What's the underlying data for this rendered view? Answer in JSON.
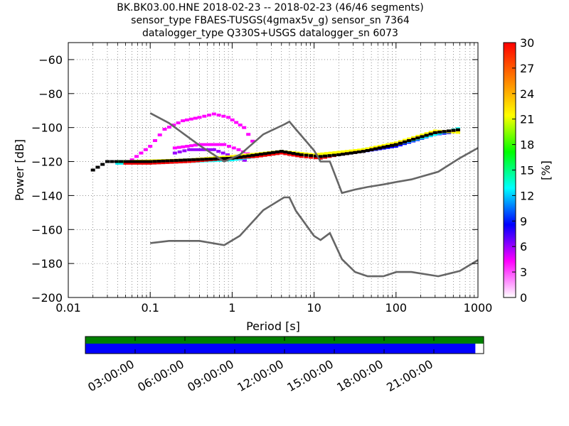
{
  "title_lines": [
    "BK.BK03.00.HNE   2018-02-23 -- 2018-02-23  (46/46 segments)",
    "sensor_type FBAES-TUSGS(4gmax5v_g) sensor_sn 7364",
    "datalogger_type Q330S+USGS datalogger_sn 6073"
  ],
  "chart_data": {
    "type": "heatmap",
    "xlabel": "Period [s]",
    "ylabel": "Power [dB]",
    "xscale": "log",
    "xlim": [
      0.01,
      1000
    ],
    "ylim": [
      -200,
      -50
    ],
    "grid": true,
    "x_ticks": [
      {
        "value": 0.01,
        "label": "0.01"
      },
      {
        "value": 0.1,
        "label": "0.1"
      },
      {
        "value": 1,
        "label": "1"
      },
      {
        "value": 10,
        "label": "10"
      },
      {
        "value": 100,
        "label": "100"
      },
      {
        "value": 1000,
        "label": "1000"
      }
    ],
    "y_ticks": [
      {
        "value": -60,
        "label": "−60"
      },
      {
        "value": -80,
        "label": "−80"
      },
      {
        "value": -100,
        "label": "−100"
      },
      {
        "value": -120,
        "label": "−120"
      },
      {
        "value": -140,
        "label": "−140"
      },
      {
        "value": -160,
        "label": "−160"
      },
      {
        "value": -180,
        "label": "−180"
      },
      {
        "value": -200,
        "label": "−200"
      }
    ],
    "colorbar": {
      "label": "[%]",
      "range": [
        0,
        30
      ],
      "ticks": [
        "0",
        "3",
        "6",
        "9",
        "12",
        "15",
        "18",
        "21",
        "24",
        "27",
        "30"
      ],
      "colormap": [
        "#ffffff",
        "#ff00ff",
        "#0000ff",
        "#00ffff",
        "#00ff00",
        "#ffff00",
        "#ff7f00",
        "#ff0000"
      ]
    },
    "noise_models": [
      {
        "points": [
          [
            0.1,
            -91.5
          ],
          [
            0.17,
            -97.4
          ],
          [
            0.4,
            -110.5
          ],
          [
            0.8,
            -120
          ],
          [
            1.24,
            -116
          ],
          [
            2.4,
            -104
          ],
          [
            4.3,
            -98.2
          ],
          [
            5,
            -96.5
          ],
          [
            6,
            -101
          ],
          [
            10,
            -113.5
          ],
          [
            12,
            -120
          ],
          [
            15.6,
            -120
          ],
          [
            21.9,
            -138.5
          ],
          [
            31.6,
            -136.5
          ],
          [
            45,
            -135
          ],
          [
            70,
            -133.5
          ],
          [
            101,
            -132
          ],
          [
            154,
            -130.5
          ],
          [
            328,
            -126
          ],
          [
            600,
            -118
          ],
          [
            1000,
            -112
          ]
        ]
      },
      {
        "points": [
          [
            0.1,
            -168
          ],
          [
            0.17,
            -166.7
          ],
          [
            0.4,
            -166.7
          ],
          [
            0.8,
            -169.2
          ],
          [
            1.24,
            -163.7
          ],
          [
            2.4,
            -148.6
          ],
          [
            4.3,
            -141.1
          ],
          [
            5,
            -141.1
          ],
          [
            6,
            -149
          ],
          [
            10,
            -163.8
          ],
          [
            12,
            -166.2
          ],
          [
            15.6,
            -162.1
          ],
          [
            21.9,
            -177.5
          ],
          [
            31.6,
            -185
          ],
          [
            45,
            -187.5
          ],
          [
            70,
            -187.5
          ],
          [
            101,
            -185
          ],
          [
            154,
            -185
          ],
          [
            328,
            -187.5
          ],
          [
            600,
            -184.4
          ],
          [
            1000,
            -178
          ]
        ]
      }
    ],
    "psd_bands": [
      {
        "percent": 1,
        "color": "#ff00ff",
        "points": [
          [
            0.06,
            -119
          ],
          [
            0.1,
            -111
          ],
          [
            0.15,
            -101
          ],
          [
            0.25,
            -96
          ],
          [
            0.4,
            -94
          ],
          [
            0.6,
            -92
          ],
          [
            0.9,
            -94
          ],
          [
            1.4,
            -100
          ],
          [
            2,
            -112
          ]
        ]
      },
      {
        "percent": 2,
        "color": "#ff00ff",
        "points": [
          [
            0.2,
            -112
          ],
          [
            0.4,
            -110
          ],
          [
            0.8,
            -110
          ],
          [
            1.2,
            -113
          ],
          [
            2,
            -118
          ]
        ]
      },
      {
        "percent": 3,
        "color": "#9900ff",
        "points": [
          [
            0.2,
            -115
          ],
          [
            0.3,
            -113
          ],
          [
            0.6,
            -113
          ],
          [
            1,
            -117
          ],
          [
            1.6,
            -120
          ]
        ]
      },
      {
        "percent": 8,
        "color": "#0000ff",
        "points": [
          [
            0.04,
            -121
          ],
          [
            0.1,
            -120
          ],
          [
            0.3,
            -119
          ],
          [
            1,
            -118
          ],
          [
            2,
            -116
          ],
          [
            4,
            -114
          ],
          [
            7,
            -116
          ],
          [
            12,
            -117
          ],
          [
            20,
            -116
          ],
          [
            40,
            -114
          ],
          [
            100,
            -111
          ],
          [
            300,
            -104
          ],
          [
            650,
            -102
          ]
        ]
      },
      {
        "percent": 14,
        "color": "#00ffff",
        "points": [
          [
            0.04,
            -121
          ],
          [
            0.1,
            -121
          ],
          [
            0.3,
            -120
          ],
          [
            1,
            -119
          ],
          [
            2,
            -117
          ],
          [
            4,
            -115
          ],
          [
            7,
            -117
          ],
          [
            12,
            -118
          ],
          [
            20,
            -116
          ],
          [
            40,
            -114
          ],
          [
            100,
            -110
          ],
          [
            300,
            -104
          ],
          [
            650,
            -100
          ]
        ]
      },
      {
        "percent": 18,
        "color": "#00ff00",
        "points": [
          [
            0.04,
            -120
          ],
          [
            0.1,
            -120
          ],
          [
            0.3,
            -119
          ],
          [
            1,
            -118
          ],
          [
            2,
            -116
          ],
          [
            4,
            -114
          ],
          [
            7,
            -116
          ],
          [
            12,
            -117
          ],
          [
            20,
            -116
          ],
          [
            40,
            -113
          ],
          [
            100,
            -110
          ],
          [
            300,
            -103
          ],
          [
            650,
            -101
          ]
        ]
      },
      {
        "percent": 23,
        "color": "#ffff00",
        "points": [
          [
            0.05,
            -120
          ],
          [
            0.3,
            -119
          ],
          [
            1,
            -117
          ],
          [
            4,
            -114
          ],
          [
            10,
            -116
          ],
          [
            40,
            -113
          ],
          [
            100,
            -109
          ],
          [
            300,
            -102
          ],
          [
            650,
            -103
          ]
        ]
      },
      {
        "percent": 30,
        "color": "#ff0000",
        "points": [
          [
            0.05,
            -121
          ],
          [
            0.1,
            -121
          ],
          [
            0.3,
            -120
          ],
          [
            1,
            -118
          ],
          [
            2,
            -117
          ],
          [
            4,
            -115
          ],
          [
            7,
            -117
          ],
          [
            12,
            -118
          ],
          [
            20,
            -116
          ],
          [
            40,
            -114
          ],
          [
            100,
            -110
          ],
          [
            300,
            -103
          ],
          [
            650,
            -101
          ]
        ]
      },
      {
        "percent": 20,
        "color": "#000000",
        "points": [
          [
            0.02,
            -125
          ],
          [
            0.03,
            -120
          ],
          [
            0.05,
            -120
          ],
          [
            0.1,
            -120
          ],
          [
            0.3,
            -119
          ],
          [
            1,
            -118
          ],
          [
            2,
            -116
          ],
          [
            4,
            -114
          ],
          [
            7,
            -116
          ],
          [
            12,
            -117
          ],
          [
            20,
            -116
          ],
          [
            40,
            -114
          ],
          [
            100,
            -110
          ],
          [
            300,
            -103
          ],
          [
            650,
            -101
          ]
        ]
      }
    ],
    "time_axis": {
      "tick_labels": [
        "03:00:00",
        "06:00:00",
        "09:00:00",
        "12:00:00",
        "15:00:00",
        "18:00:00",
        "21:00:00"
      ],
      "tick_hours": [
        3,
        6,
        9,
        12,
        15,
        18,
        21
      ],
      "range_hours": [
        0,
        24
      ],
      "data_coverage": [
        [
          0,
          24
        ]
      ],
      "psd_coverage": [
        [
          0,
          23.5
        ]
      ],
      "data_color": "#008000",
      "psd_color": "#0000ff"
    }
  }
}
